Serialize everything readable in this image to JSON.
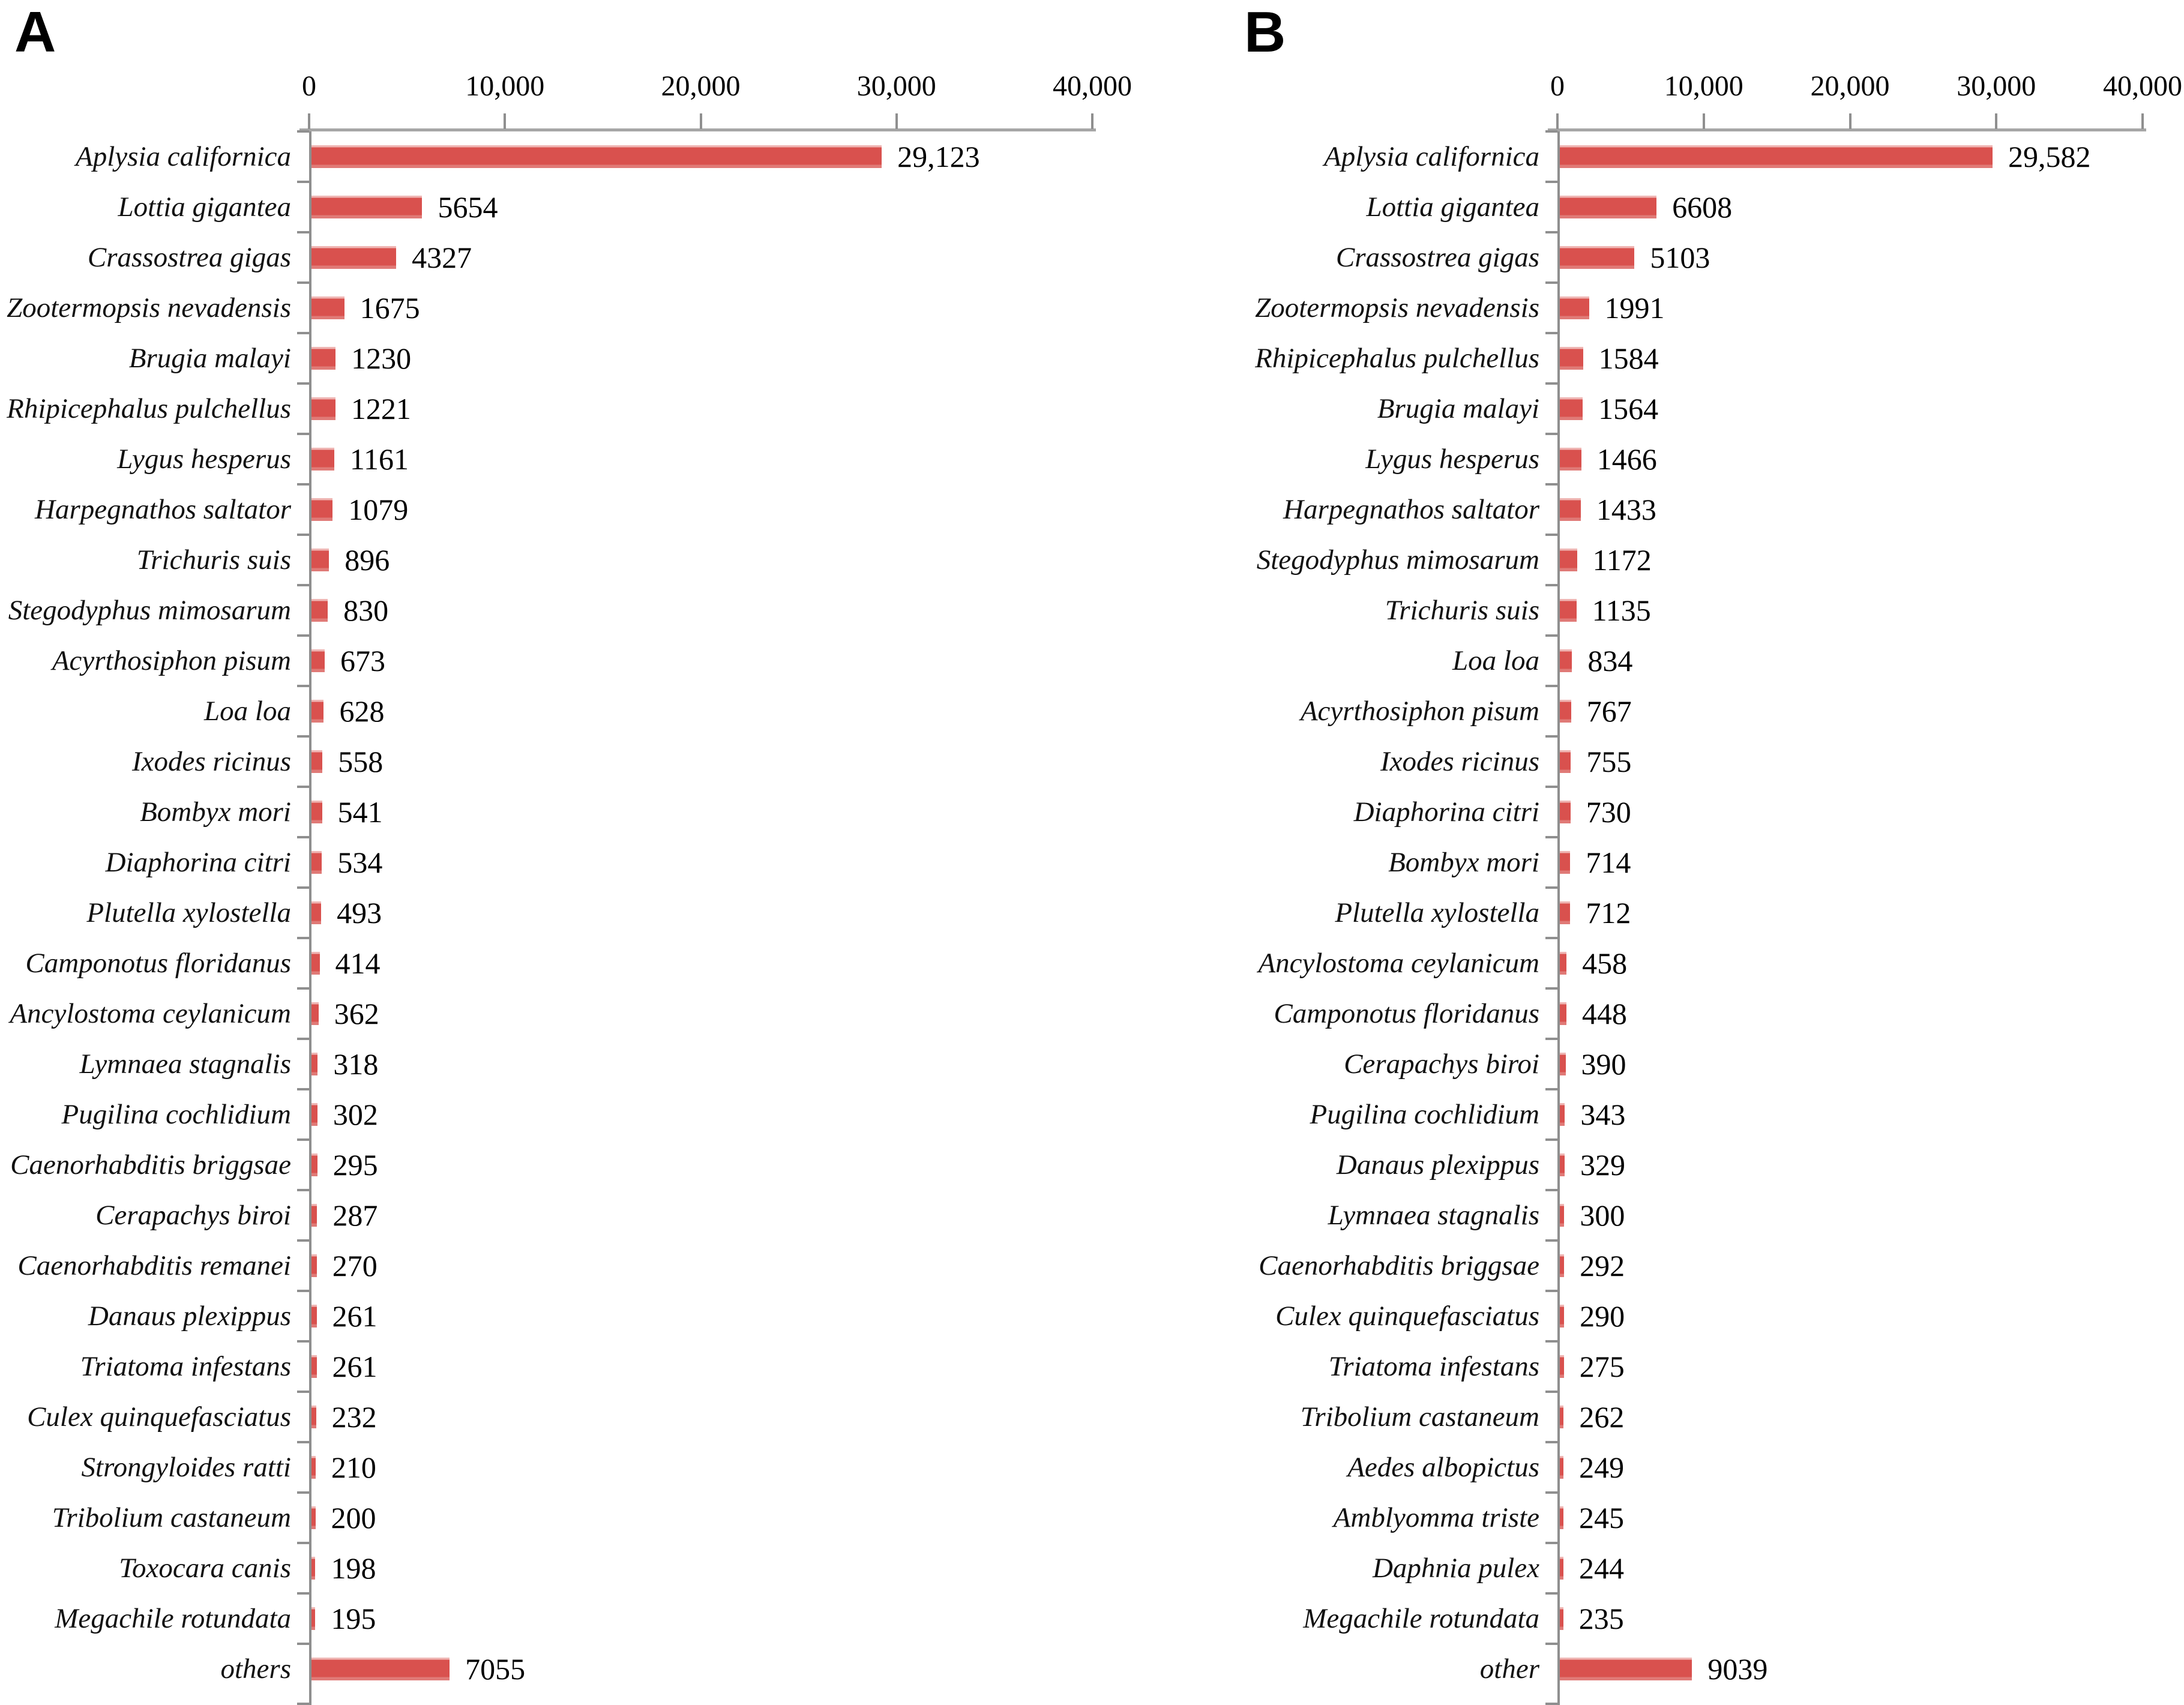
{
  "colors": {
    "bar": "#d9514e",
    "axis_line": "#a6a6a6",
    "tick": "#8f8f8f",
    "text": "#000000"
  },
  "chart_data": [
    {
      "type": "bar",
      "orientation": "horizontal",
      "title": "A",
      "xlim": [
        0,
        40000
      ],
      "xticks": [
        "0",
        "10,000",
        "20,000",
        "30,000",
        "40,000"
      ],
      "grid": false,
      "legend": false,
      "categories": [
        "Aplysia californica",
        "Lottia gigantea",
        "Crassostrea gigas",
        "Zootermopsis nevadensis",
        "Brugia malayi",
        "Rhipicephalus pulchellus",
        "Lygus hesperus",
        "Harpegnathos saltator",
        "Trichuris suis",
        "Stegodyphus mimosarum",
        "Acyrthosiphon pisum",
        "Loa loa",
        "Ixodes ricinus",
        "Bombyx mori",
        "Diaphorina citri",
        "Plutella xylostella",
        "Camponotus floridanus",
        "Ancylostoma ceylanicum",
        "Lymnaea stagnalis",
        "Pugilina cochlidium",
        "Caenorhabditis briggsae",
        "Cerapachys biroi",
        "Caenorhabditis remanei",
        "Danaus plexippus",
        "Triatoma infestans",
        "Culex quinquefasciatus",
        "Strongyloides ratti",
        "Tribolium castaneum",
        "Toxocara canis",
        "Megachile rotundata",
        "others"
      ],
      "values": [
        29123,
        5654,
        4327,
        1675,
        1230,
        1221,
        1161,
        1079,
        896,
        830,
        673,
        628,
        558,
        541,
        534,
        493,
        414,
        362,
        318,
        302,
        295,
        287,
        270,
        261,
        261,
        232,
        210,
        200,
        198,
        195,
        7055
      ],
      "value_labels": [
        "29,123",
        "5654",
        "4327",
        "1675",
        "1230",
        "1221",
        "1161",
        "1079",
        "896",
        "830",
        "673",
        "628",
        "558",
        "541",
        "534",
        "493",
        "414",
        "362",
        "318",
        "302",
        "295",
        "287",
        "270",
        "261",
        "261",
        "232",
        "210",
        "200",
        "198",
        "195",
        "7055"
      ]
    },
    {
      "type": "bar",
      "orientation": "horizontal",
      "title": "B",
      "xlim": [
        0,
        40000
      ],
      "xticks": [
        "0",
        "10,000",
        "20,000",
        "30,000",
        "40,000"
      ],
      "grid": false,
      "legend": false,
      "categories": [
        "Aplysia californica",
        "Lottia gigantea",
        "Crassostrea gigas",
        "Zootermopsis nevadensis",
        "Rhipicephalus pulchellus",
        "Brugia malayi",
        "Lygus hesperus",
        "Harpegnathos saltator",
        "Stegodyphus mimosarum",
        "Trichuris suis",
        "Loa loa",
        "Acyrthosiphon pisum",
        "Ixodes ricinus",
        "Diaphorina citri",
        "Bombyx mori",
        "Plutella xylostella",
        "Ancylostoma ceylanicum",
        "Camponotus floridanus",
        "Cerapachys biroi",
        "Pugilina cochlidium",
        "Danaus plexippus",
        "Lymnaea stagnalis",
        "Caenorhabditis briggsae",
        "Culex quinquefasciatus",
        "Triatoma infestans",
        "Tribolium castaneum",
        "Aedes albopictus",
        "Amblyomma triste",
        "Daphnia pulex",
        "Megachile rotundata",
        "other"
      ],
      "values": [
        29582,
        6608,
        5103,
        1991,
        1584,
        1564,
        1466,
        1433,
        1172,
        1135,
        834,
        767,
        755,
        730,
        714,
        712,
        458,
        448,
        390,
        343,
        329,
        300,
        292,
        290,
        275,
        262,
        249,
        245,
        244,
        235,
        9039
      ],
      "value_labels": [
        "29,582",
        "6608",
        "5103",
        "1991",
        "1584",
        "1564",
        "1466",
        "1433",
        "1172",
        "1135",
        "834",
        "767",
        "755",
        "730",
        "714",
        "712",
        "458",
        "448",
        "390",
        "343",
        "329",
        "300",
        "292",
        "290",
        "275",
        "262",
        "249",
        "245",
        "244",
        "235",
        "9039"
      ]
    }
  ]
}
